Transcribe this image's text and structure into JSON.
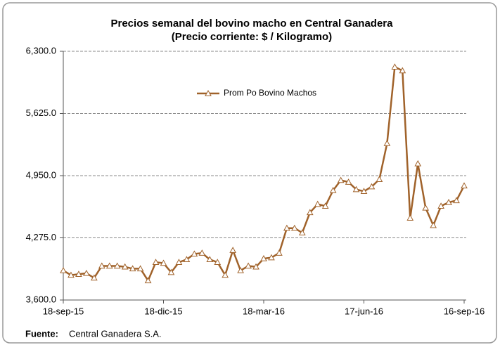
{
  "chart_data": {
    "type": "line",
    "title": [
      "Precios semanal del bovino  macho en Central Ganadera",
      "(Precio corriente: $ / Kilogramo)"
    ],
    "categories": [
      "18-sep-15",
      null,
      null,
      null,
      null,
      null,
      null,
      null,
      null,
      null,
      null,
      null,
      null,
      "18-dic-15",
      null,
      null,
      null,
      null,
      null,
      null,
      null,
      null,
      null,
      null,
      null,
      null,
      "18-mar-16",
      null,
      null,
      null,
      null,
      null,
      null,
      null,
      null,
      null,
      null,
      null,
      null,
      "17-jun-16",
      null,
      null,
      null,
      null,
      null,
      null,
      null,
      null,
      null,
      null,
      null,
      null,
      "16-sep-16"
    ],
    "series": [
      {
        "name": "Prom Po Bovino Machos",
        "color": "#a0622a",
        "values": [
          3920,
          3870,
          3880,
          3890,
          3840,
          3970,
          3970,
          3970,
          3960,
          3940,
          3940,
          3810,
          4010,
          4000,
          3900,
          4010,
          4040,
          4100,
          4110,
          4040,
          4010,
          3870,
          4140,
          3920,
          3970,
          3960,
          4050,
          4060,
          4110,
          4380,
          4380,
          4330,
          4550,
          4640,
          4620,
          4790,
          4900,
          4880,
          4800,
          4780,
          4830,
          4910,
          5300,
          6130,
          6090,
          4490,
          5080,
          4600,
          4410,
          4620,
          4660,
          4680,
          4840
        ]
      }
    ],
    "ylim": [
      3600,
      6300
    ],
    "yticks": [
      {
        "value": 3600,
        "label": "3,600.0"
      },
      {
        "value": 4275,
        "label": "4,275.0"
      },
      {
        "value": 4950,
        "label": "4,950.0"
      },
      {
        "value": 5625,
        "label": "5,625.0"
      },
      {
        "value": 6300,
        "label": "6,300.0"
      }
    ],
    "grid": true,
    "legend": "top",
    "source": {
      "label": "Fuente:",
      "text": "Central Ganadera S.A."
    }
  }
}
